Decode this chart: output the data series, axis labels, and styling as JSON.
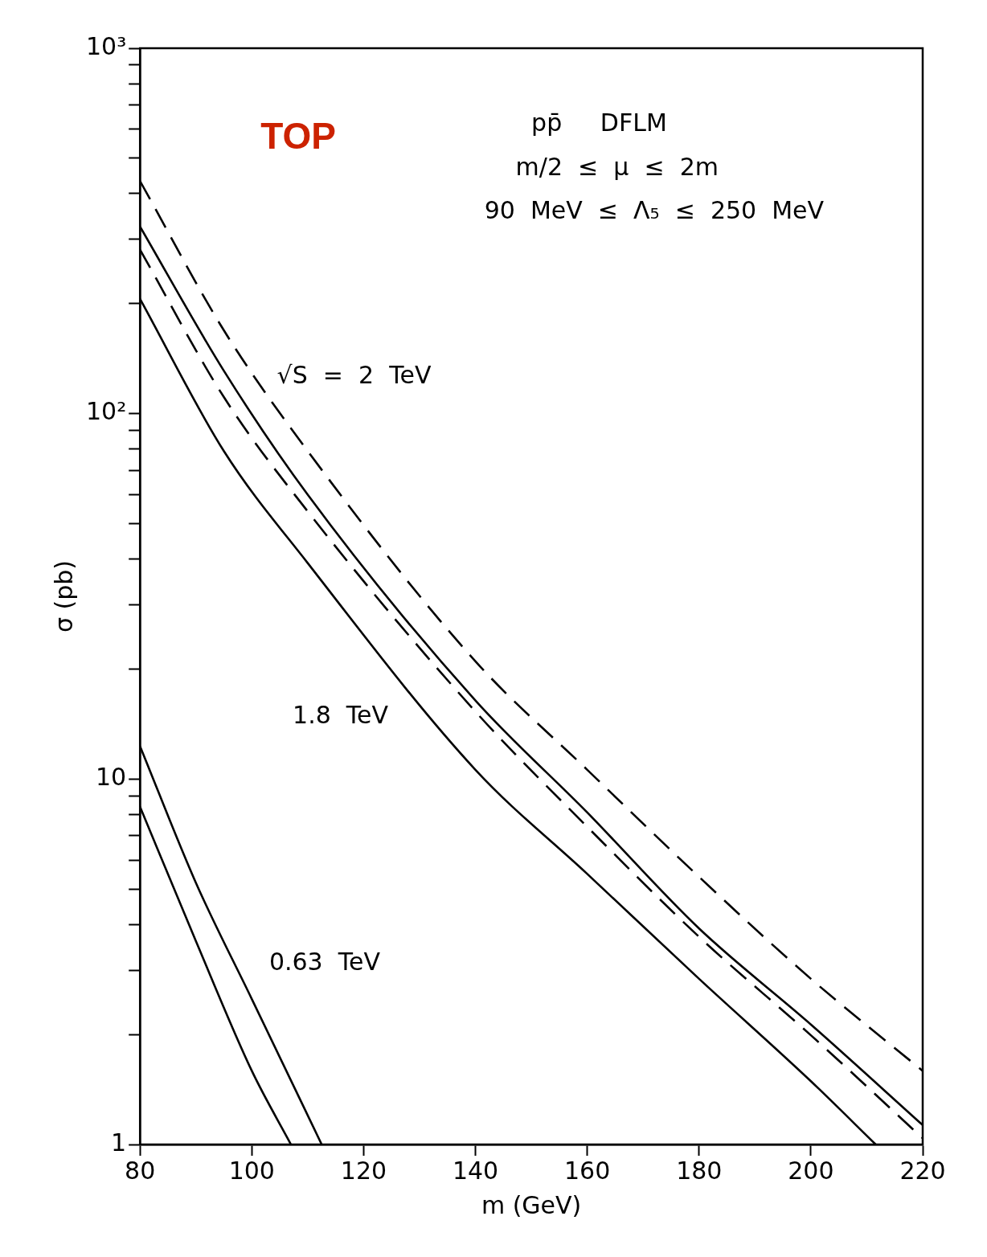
{
  "chart_data": {
    "type": "line",
    "title": "TOP",
    "xlabel": "m (GeV)",
    "ylabel": "σ (pb)",
    "log": "y",
    "grid": false,
    "legend": false,
    "marker": "none",
    "xlim": [
      80,
      220
    ],
    "xticks": [
      80,
      100,
      120,
      140,
      160,
      180,
      200,
      220
    ],
    "ylim": [
      1,
      1000
    ],
    "yticks": [
      {
        "value": 1,
        "label": "1"
      },
      {
        "value": 2,
        "label": null
      },
      {
        "value": 3,
        "label": null
      },
      {
        "value": 4,
        "label": null
      },
      {
        "value": 5,
        "label": null
      },
      {
        "value": 6,
        "label": null
      },
      {
        "value": 7,
        "label": null
      },
      {
        "value": 8,
        "label": null
      },
      {
        "value": 9,
        "label": null
      },
      {
        "value": 10,
        "label": "10"
      },
      {
        "value": 20,
        "label": null
      },
      {
        "value": 30,
        "label": null
      },
      {
        "value": 40,
        "label": null
      },
      {
        "value": 50,
        "label": null
      },
      {
        "value": 60,
        "label": null
      },
      {
        "value": 70,
        "label": null
      },
      {
        "value": 80,
        "label": null
      },
      {
        "value": 90,
        "label": null
      },
      {
        "value": 100,
        "label": "10²"
      },
      {
        "value": 200,
        "label": null
      },
      {
        "value": 300,
        "label": null
      },
      {
        "value": 400,
        "label": null
      },
      {
        "value": 500,
        "label": null
      },
      {
        "value": 600,
        "label": null
      },
      {
        "value": 700,
        "label": null
      },
      {
        "value": 800,
        "label": null
      },
      {
        "value": 900,
        "label": null
      },
      {
        "value": 1000,
        "label": "10³"
      }
    ],
    "series": [
      {
        "color": "#000000",
        "line_style": "dashed",
        "x": [
          80,
          95,
          110,
          140,
          160,
          180,
          200,
          220
        ],
        "values": [
          433,
          169,
          79,
          21,
          10.6,
          5.4,
          2.84,
          1.59
        ]
      },
      {
        "color": "#000000",
        "line_style": "solid",
        "x": [
          80,
          95,
          110,
          140,
          160,
          180,
          200,
          220
        ],
        "values": [
          325,
          131,
          60,
          16.4,
          8.1,
          3.9,
          2.13,
          1.13
        ]
      },
      {
        "color": "#000000",
        "line_style": "dashed",
        "x": [
          80,
          95,
          110,
          140,
          160,
          180,
          200,
          220
        ],
        "values": [
          281,
          111,
          54,
          15.3,
          7.4,
          3.7,
          1.99,
          1.04
        ]
      },
      {
        "color": "#000000",
        "line_style": "solid",
        "x": [
          80,
          95,
          110,
          140,
          160,
          180,
          200,
          211.6
        ],
        "values": [
          206,
          79,
          39,
          10.6,
          5.5,
          2.84,
          1.49,
          1
        ]
      },
      {
        "color": "#000000",
        "line_style": "solid",
        "x": [
          80,
          90,
          100,
          112.5
        ],
        "values": [
          12.3,
          5.2,
          2.5,
          1
        ]
      },
      {
        "color": "#000000",
        "line_style": "solid",
        "x": [
          80,
          90,
          100,
          107
        ],
        "values": [
          8.4,
          3.6,
          1.59,
          1
        ]
      }
    ],
    "annotations": [
      "√S  =  2  TeV",
      "1.8  TeV",
      "0.63  TeV",
      "pp̄     DFLM",
      "m/2  ≤  μ  ≤  2m",
      "90  MeV  ≤  Λ₅  ≤  250  MeV"
    ]
  }
}
